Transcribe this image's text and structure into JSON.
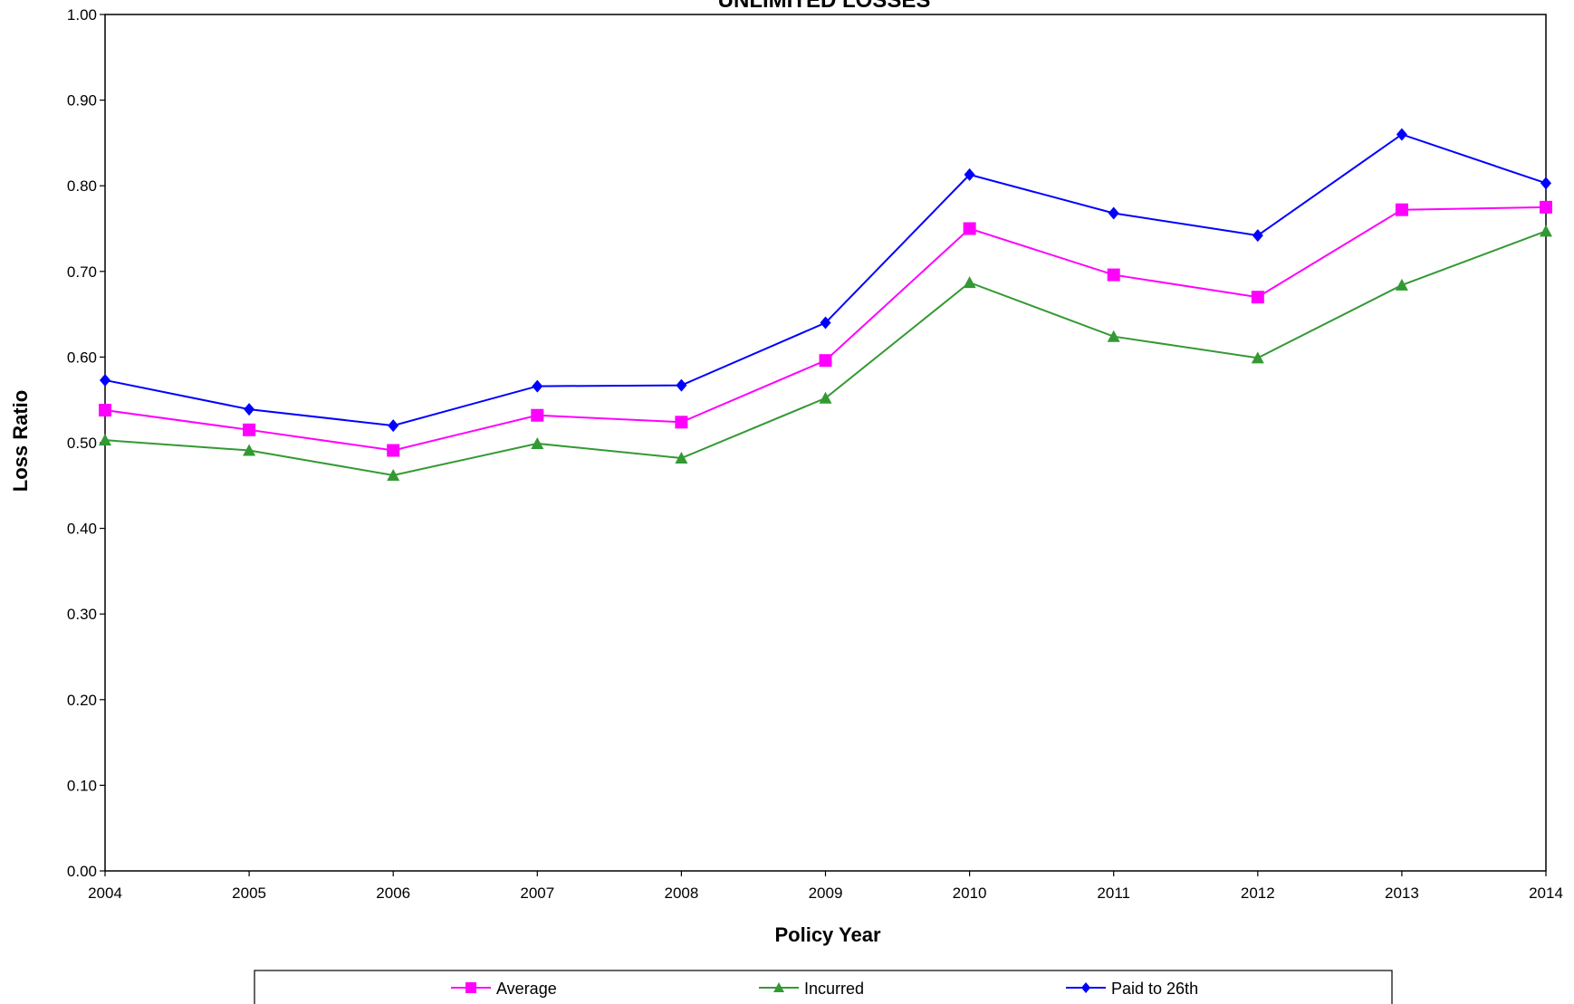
{
  "chart_data": {
    "type": "line",
    "title": "UNLIMITED LOSSES",
    "xlabel": "Policy Year",
    "ylabel": "Loss Ratio",
    "x": [
      "2004",
      "2005",
      "2006",
      "2007",
      "2008",
      "2009",
      "2010",
      "2011",
      "2012",
      "2013",
      "2014"
    ],
    "ylim": [
      0,
      1
    ],
    "yticks": [
      "0.00",
      "0.10",
      "0.20",
      "0.30",
      "0.40",
      "0.50",
      "0.60",
      "0.70",
      "0.80",
      "0.90",
      "1.00"
    ],
    "grid": false,
    "legend_position": "bottom",
    "series": [
      {
        "name": "Average",
        "color": "#ff00ff",
        "marker": "square",
        "values": [
          0.538,
          0.515,
          0.491,
          0.532,
          0.524,
          0.596,
          0.75,
          0.696,
          0.67,
          0.772,
          0.775
        ]
      },
      {
        "name": "Incurred",
        "color": "#339933",
        "marker": "triangle",
        "values": [
          0.503,
          0.491,
          0.462,
          0.499,
          0.482,
          0.552,
          0.687,
          0.624,
          0.599,
          0.684,
          0.747
        ]
      },
      {
        "name": "Paid to 26th",
        "color": "#0000ff",
        "marker": "diamond",
        "values": [
          0.573,
          0.539,
          0.52,
          0.566,
          0.567,
          0.64,
          0.813,
          0.768,
          0.742,
          0.86,
          0.803
        ]
      }
    ]
  }
}
